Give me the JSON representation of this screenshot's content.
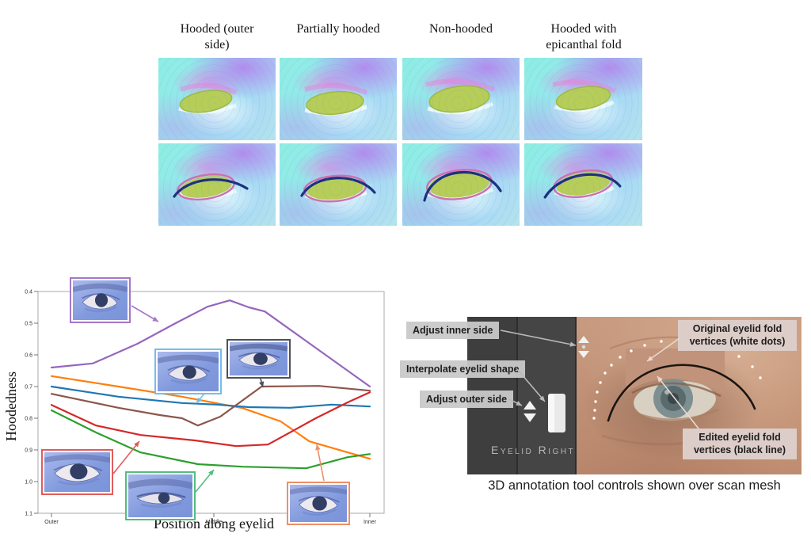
{
  "top_grid": {
    "columns": [
      "Hooded (outer side)",
      "Partially hooded",
      "Non-hooded",
      "Hooded with epicanthal fold"
    ]
  },
  "chart_data": {
    "type": "line",
    "title": "",
    "xlabel": "Position along eyelid",
    "ylabel": "Hoodedness",
    "x_ticks": [
      "Outer",
      "Middle",
      "Inner"
    ],
    "x_tick_pos": [
      0,
      0.51,
      1
    ],
    "y_ticks": [
      0.4,
      0.5,
      0.6,
      0.7,
      0.8,
      0.9,
      1.0,
      1.1
    ],
    "ylim": [
      0.4,
      1.1
    ],
    "y_axis_inverted": true,
    "grid": false,
    "legend": "none (insets with eye renders point at lines)",
    "series": [
      {
        "name": "hooded-outer-side",
        "color": "#9467bd",
        "points": [
          [
            0,
            0.64
          ],
          [
            0.13,
            0.627
          ],
          [
            0.27,
            0.565
          ],
          [
            0.39,
            0.5
          ],
          [
            0.49,
            0.448
          ],
          [
            0.56,
            0.428
          ],
          [
            0.62,
            0.45
          ],
          [
            0.67,
            0.463
          ],
          [
            1,
            0.7
          ]
        ]
      },
      {
        "name": "hooded-epicanthal",
        "color": "#ff7f0e",
        "points": [
          [
            0,
            0.667
          ],
          [
            0.21,
            0.7
          ],
          [
            0.41,
            0.732
          ],
          [
            0.53,
            0.755
          ],
          [
            0.6,
            0.768
          ],
          [
            0.72,
            0.81
          ],
          [
            0.81,
            0.873
          ],
          [
            1,
            0.928
          ]
        ]
      },
      {
        "name": "partially-hooded",
        "color": "#1f77b4",
        "points": [
          [
            0,
            0.7
          ],
          [
            0.21,
            0.732
          ],
          [
            0.41,
            0.752
          ],
          [
            0.52,
            0.757
          ],
          [
            0.62,
            0.765
          ],
          [
            0.75,
            0.767
          ],
          [
            0.88,
            0.757
          ],
          [
            1,
            0.763
          ]
        ]
      },
      {
        "name": "non-hooded-brown",
        "color": "#8c564b",
        "points": [
          [
            0,
            0.723
          ],
          [
            0.21,
            0.767
          ],
          [
            0.34,
            0.79
          ],
          [
            0.41,
            0.8
          ],
          [
            0.46,
            0.823
          ],
          [
            0.53,
            0.795
          ],
          [
            0.66,
            0.7
          ],
          [
            0.84,
            0.698
          ],
          [
            1,
            0.713
          ]
        ]
      },
      {
        "name": "wide-open-red",
        "color": "#d62728",
        "points": [
          [
            0,
            0.758
          ],
          [
            0.14,
            0.823
          ],
          [
            0.28,
            0.853
          ],
          [
            0.45,
            0.87
          ],
          [
            0.58,
            0.888
          ],
          [
            0.68,
            0.883
          ],
          [
            0.83,
            0.8
          ],
          [
            0.93,
            0.75
          ],
          [
            1,
            0.718
          ]
        ]
      },
      {
        "name": "very-hooded-green",
        "color": "#2ca02c",
        "points": [
          [
            0,
            0.775
          ],
          [
            0.14,
            0.845
          ],
          [
            0.28,
            0.908
          ],
          [
            0.46,
            0.945
          ],
          [
            0.6,
            0.953
          ],
          [
            0.8,
            0.958
          ],
          [
            0.93,
            0.923
          ],
          [
            1,
            0.913
          ]
        ]
      }
    ],
    "insets": [
      {
        "id": "purple-inset",
        "border": "#a476c9",
        "arrow": [
          166,
          386,
          200,
          406
        ]
      },
      {
        "id": "lightblue-inset",
        "border": "#74bde8",
        "arrow": [
          258,
          497,
          248,
          509
        ]
      },
      {
        "id": "dark-inset",
        "border": "#4f4f5a",
        "arrow": [
          329,
          478,
          332,
          489
        ]
      },
      {
        "id": "red-inset",
        "border": "#e35b5b",
        "arrow": [
          143,
          598,
          176,
          557
        ]
      },
      {
        "id": "green-inset",
        "border": "#55bd7c",
        "arrow": [
          247,
          621,
          270,
          593
        ]
      },
      {
        "id": "salmon-inset",
        "border": "#f08e66",
        "arrow": [
          409,
          607,
          400,
          561
        ]
      }
    ]
  },
  "tool": {
    "labels": {
      "adjust_inner": "Adjust inner side",
      "interpolate": "Interpolate eyelid shape",
      "adjust_outer": "Adjust outer side",
      "original_vertices": "Original eyelid fold vertices (white dots)",
      "edited_vertices": "Edited eyelid fold vertices (black line)"
    },
    "label_arrows": {
      "adjust_inner": [
        632,
        417,
        727,
        436
      ],
      "interpolate": [
        653,
        466,
        688,
        507
      ],
      "adjust_outer": [
        643,
        504,
        659,
        512
      ],
      "original_vertices": [
        858,
        427,
        817,
        456
      ],
      "edited_vertices": [
        882,
        541,
        830,
        475
      ]
    },
    "arrow_colors": {
      "gray": "#b9b9b9",
      "pink": "#e6d9d4"
    },
    "panel_title": "Eyelid Right",
    "caption": "3D annotation tool controls shown over scan mesh",
    "dots": [
      [
        160,
        128
      ],
      [
        161,
        118
      ],
      [
        162,
        107
      ],
      [
        164,
        95
      ],
      [
        168,
        83
      ],
      [
        174,
        71
      ],
      [
        182,
        61
      ],
      [
        193,
        51
      ],
      [
        207,
        43
      ],
      [
        224,
        36
      ],
      [
        245,
        31
      ],
      [
        268,
        29
      ],
      [
        294,
        31
      ],
      [
        320,
        39
      ],
      [
        343,
        50
      ],
      [
        360,
        63
      ],
      [
        370,
        77
      ]
    ]
  }
}
